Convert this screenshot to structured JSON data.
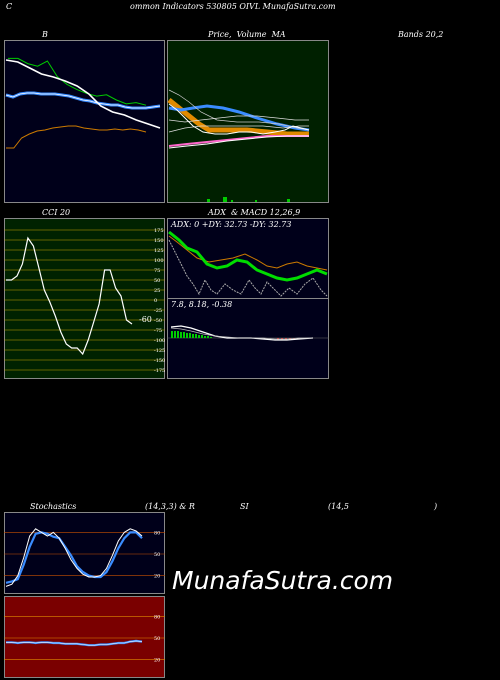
{
  "header": {
    "c_letter": "C",
    "title": "ommon Indicators 530805 OIVL MunafaSutra.com"
  },
  "labels": {
    "b_label": "B",
    "price_label": "Price,  Volume  MA",
    "bands_label": "Bands 20,2",
    "cci_label": "CCI 20",
    "adx_label": "ADX  & MACD 12,26,9",
    "adx_values": "ADX: 0  +DY: 32.73 -DY: 32.73",
    "macd_values": "7.8,  8.18,  -0.38",
    "cci_value": "-60",
    "stoch_label": "Stochastics",
    "stoch_params": "(14,3,3) & R",
    "si_label": "SI",
    "rsi_params": "(14,5",
    "rsi_close": ")",
    "watermark": "MunafaSutra.com"
  },
  "colors": {
    "bb_bg": "#00001a",
    "price_bg": "#002000",
    "cci_bg": "#002200",
    "stoch_bg": "#00001a",
    "rsi_bg": "#7a0000",
    "green_line": "#00cc00",
    "blue_line": "#3a8cff",
    "orange_line": "#cc7a00"
  },
  "chart_data": [
    {
      "type": "line",
      "panel": "bollinger",
      "series": [
        {
          "values": [
            90,
            88,
            82,
            76,
            73,
            69,
            64,
            56,
            44,
            38,
            35,
            30,
            26,
            22
          ]
        },
        {
          "values": [
            45,
            43,
            46,
            47,
            47,
            46,
            46,
            46,
            45,
            44,
            42,
            40,
            39,
            37,
            36,
            35,
            35,
            33,
            32,
            32,
            32,
            33,
            34
          ]
        },
        {
          "values": [
            10,
            12,
            20,
            28,
            34,
            36,
            40,
            42,
            44,
            44,
            40,
            38,
            36,
            36,
            38,
            36,
            38,
            36,
            32
          ]
        },
        {
          "values": [
            32,
            32,
            28,
            26,
            30,
            18,
            12,
            8,
            5,
            3,
            4,
            0,
            -3,
            -2,
            -4
          ]
        },
        {
          "values": [
            50,
            58,
            60,
            45,
            36,
            25,
            20,
            18,
            10,
            20,
            12,
            22,
            15,
            18,
            20,
            15,
            12,
            10,
            12,
            15,
            18,
            20,
            10,
            12
          ]
        }
      ]
    },
    {
      "type": "line",
      "panel": "cci",
      "ticks": [
        175,
        150,
        125,
        100,
        75,
        50,
        25,
        0,
        -25,
        -50,
        -75,
        -100,
        -125,
        -150,
        -175
      ],
      "ylim": [
        -175,
        175
      ],
      "values": [
        50,
        50,
        60,
        90,
        155,
        135,
        80,
        25,
        -5,
        -40,
        -80,
        -110,
        -120,
        -120,
        -135,
        -100,
        -55,
        -10,
        75,
        75,
        30,
        10,
        -50,
        -60
      ]
    },
    {
      "type": "line",
      "panel": "stochastics",
      "ticks": [
        80,
        50,
        20
      ],
      "ylim": [
        0,
        100
      ],
      "series": [
        {
          "values": [
            5,
            8,
            20,
            45,
            75,
            85,
            80,
            75,
            80,
            72,
            58,
            42,
            30,
            22,
            18,
            18,
            20,
            30,
            48,
            68,
            80,
            85,
            82,
            75
          ]
        },
        {
          "values": [
            10,
            12,
            15,
            35,
            60,
            78,
            80,
            78,
            74,
            72,
            60,
            48,
            33,
            25,
            20,
            18,
            18,
            25,
            40,
            58,
            72,
            80,
            80,
            72
          ]
        }
      ]
    },
    {
      "type": "line",
      "panel": "rsi",
      "ticks": [
        80,
        50,
        20
      ],
      "ylim": [
        0,
        100
      ],
      "values": [
        44,
        44,
        43,
        44,
        44,
        43,
        44,
        44,
        43,
        43,
        42,
        42,
        42,
        41,
        40,
        40,
        41,
        41,
        42,
        43,
        43,
        45,
        46,
        45
      ]
    }
  ]
}
